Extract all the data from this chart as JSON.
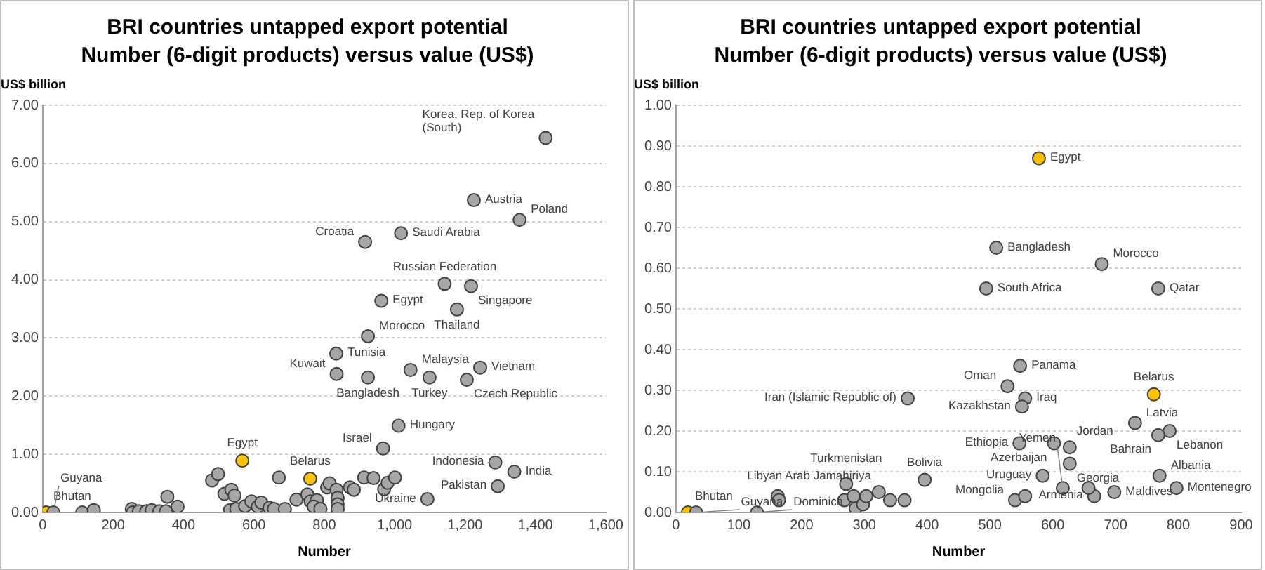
{
  "chart_data": [
    {
      "type": "scatter",
      "title": "BRI countries untapped export potential",
      "subtitle": "Number (6-digit products) versus value (US$)",
      "xlabel": "Number",
      "ylabel": "US$ billion",
      "xlim": [
        0,
        1600
      ],
      "ylim": [
        0,
        7
      ],
      "xticks": [
        0,
        200,
        400,
        600,
        800,
        {
          "value": 1000,
          "label": "1,000"
        },
        {
          "value": 1200,
          "label": "1,200"
        },
        {
          "value": 1400,
          "label": "1,400"
        },
        {
          "value": 1600,
          "label": "1,600"
        }
      ],
      "yticks": [
        {
          "value": 0,
          "label": "0.00"
        },
        {
          "value": 1,
          "label": "1.00"
        },
        {
          "value": 2,
          "label": "2.00"
        },
        {
          "value": 3,
          "label": "3.00"
        },
        {
          "value": 4,
          "label": "4.00"
        },
        {
          "value": 5,
          "label": "5.00"
        },
        {
          "value": 6,
          "label": "6.00"
        },
        {
          "value": 7,
          "label": "7.00"
        }
      ],
      "grid": "y",
      "marker": "circle",
      "legend": false,
      "series": [
        {
          "color": "#a6a6a6",
          "x": [
            1429,
            1225,
            1355,
            1018,
            916,
            1142,
            1217,
            962,
            1177,
            924,
            834,
            835,
            924,
            1045,
            1099,
            1243,
            1205,
            1011,
            967,
            1286,
            1340,
            1293,
            1093,
            30,
            112,
            145,
            253,
            256,
            273,
            294,
            310,
            331,
            350,
            354,
            383,
            481,
            498,
            516,
            536,
            545,
            532,
            550,
            575,
            593,
            611,
            621,
            644,
            671,
            657,
            688,
            721,
            752,
            761,
            779,
            770,
            789,
            808,
            815,
            835,
            838,
            838,
            838,
            873,
            884,
            913,
            940,
            970,
            980,
            1001
          ],
          "values": [
            6.44,
            5.37,
            5.03,
            4.8,
            4.65,
            3.93,
            3.89,
            3.64,
            3.49,
            3.03,
            2.73,
            2.38,
            2.32,
            2.45,
            2.32,
            2.49,
            2.28,
            1.49,
            1.1,
            0.86,
            0.7,
            0.45,
            0.23,
            0.0,
            0.0,
            0.04,
            0.06,
            0.0,
            0.02,
            0.02,
            0.04,
            0.02,
            0.02,
            0.27,
            0.1,
            0.55,
            0.66,
            0.32,
            0.39,
            0.29,
            0.04,
            0.06,
            0.11,
            0.19,
            0.1,
            0.17,
            0.08,
            0.6,
            0.06,
            0.06,
            0.22,
            0.31,
            0.19,
            0.21,
            0.1,
            0.06,
            0.43,
            0.5,
            0.39,
            0.25,
            0.14,
            0.06,
            0.43,
            0.39,
            0.6,
            0.59,
            0.4,
            0.51,
            0.6
          ]
        },
        {
          "color": "#ffc000",
          "x": [
            10,
            567,
            760
          ],
          "values": [
            0.0,
            0.89,
            0.58
          ]
        }
      ],
      "annotations": [
        {
          "text": "Korea, Rep. of Korea (South)",
          "x": 1429,
          "y": 6.44
        },
        {
          "text": "Austria",
          "x": 1225,
          "y": 5.37
        },
        {
          "text": "Poland",
          "x": 1355,
          "y": 5.03
        },
        {
          "text": "Saudi Arabia",
          "x": 1018,
          "y": 4.8
        },
        {
          "text": "Croatia",
          "x": 916,
          "y": 4.65
        },
        {
          "text": "Russian Federation",
          "x": 1142,
          "y": 3.93
        },
        {
          "text": "Singapore",
          "x": 1217,
          "y": 3.89
        },
        {
          "text": "Egypt",
          "x": 962,
          "y": 3.64
        },
        {
          "text": "Thailand",
          "x": 1177,
          "y": 3.49
        },
        {
          "text": "Morocco",
          "x": 924,
          "y": 3.03
        },
        {
          "text": "Tunisia",
          "x": 834,
          "y": 2.73
        },
        {
          "text": "Kuwait",
          "x": 835,
          "y": 2.38
        },
        {
          "text": "Bangladesh",
          "x": 924,
          "y": 2.32
        },
        {
          "text": "Malaysia",
          "x": 1045,
          "y": 2.45
        },
        {
          "text": "Turkey",
          "x": 1099,
          "y": 2.32
        },
        {
          "text": "Vietnam",
          "x": 1243,
          "y": 2.49
        },
        {
          "text": "Czech Republic",
          "x": 1205,
          "y": 2.28
        },
        {
          "text": "Hungary",
          "x": 1011,
          "y": 1.49
        },
        {
          "text": "Israel",
          "x": 967,
          "y": 1.1
        },
        {
          "text": "Indonesia",
          "x": 1286,
          "y": 0.86
        },
        {
          "text": "India",
          "x": 1340,
          "y": 0.7
        },
        {
          "text": "Pakistan",
          "x": 1293,
          "y": 0.45
        },
        {
          "text": "Ukraine",
          "x": 1093,
          "y": 0.23
        },
        {
          "text": "Egypt",
          "x": 567,
          "y": 0.89
        },
        {
          "text": "Belarus",
          "x": 760,
          "y": 0.58
        },
        {
          "text": "Bhutan",
          "x": 10,
          "y": 0.0
        },
        {
          "text": "Guyana",
          "x": 30,
          "y": 0.0
        }
      ]
    },
    {
      "type": "scatter",
      "title": "BRI countries untapped export potential",
      "subtitle": "Number (6-digit products) versus value (US$)",
      "xlabel": "Number",
      "ylabel": "US$ billion",
      "xlim": [
        0,
        900
      ],
      "ylim": [
        0,
        1
      ],
      "xticks": [
        0,
        100,
        200,
        300,
        400,
        500,
        600,
        700,
        800,
        900
      ],
      "yticks": [
        {
          "value": 0,
          "label": "0.00"
        },
        {
          "value": 0.1,
          "label": "0.10"
        },
        {
          "value": 0.2,
          "label": "0.20"
        },
        {
          "value": 0.3,
          "label": "0.30"
        },
        {
          "value": 0.4,
          "label": "0.40"
        },
        {
          "value": 0.5,
          "label": "0.50"
        },
        {
          "value": 0.6,
          "label": "0.60"
        },
        {
          "value": 0.7,
          "label": "0.70"
        },
        {
          "value": 0.8,
          "label": "0.80"
        },
        {
          "value": 0.9,
          "label": "0.90"
        },
        {
          "value": 1,
          "label": "1.00"
        }
      ],
      "grid": "y",
      "marker": "circle",
      "legend": false,
      "series": [
        {
          "color": "#a6a6a6",
          "x": [
            510,
            678,
            494,
            768,
            548,
            528,
            556,
            551,
            369,
            731,
            786,
            768,
            602,
            627,
            547,
            627,
            584,
            770,
            797,
            698,
            666,
            616,
            540,
            556,
            657,
            396,
            271,
            32,
            129,
            162,
            164,
            268,
            283,
            286,
            298,
            303,
            323,
            341,
            364
          ],
          "values": [
            0.65,
            0.61,
            0.55,
            0.55,
            0.36,
            0.31,
            0.28,
            0.26,
            0.28,
            0.22,
            0.2,
            0.19,
            0.17,
            0.16,
            0.17,
            0.12,
            0.09,
            0.09,
            0.06,
            0.05,
            0.04,
            0.06,
            0.03,
            0.04,
            0.06,
            0.08,
            0.07,
            0.0,
            0.0,
            0.04,
            0.03,
            0.03,
            0.04,
            0.01,
            0.02,
            0.04,
            0.05,
            0.03,
            0.03
          ]
        },
        {
          "color": "#ffc000",
          "x": [
            19,
            578,
            761
          ],
          "values": [
            0.0,
            0.87,
            0.29
          ]
        }
      ],
      "annotations": [
        {
          "text": "Egypt",
          "x": 578,
          "y": 0.87
        },
        {
          "text": "Bangladesh",
          "x": 510,
          "y": 0.65
        },
        {
          "text": "Morocco",
          "x": 678,
          "y": 0.61
        },
        {
          "text": "South Africa",
          "x": 494,
          "y": 0.55
        },
        {
          "text": "Qatar",
          "x": 768,
          "y": 0.55
        },
        {
          "text": "Panama",
          "x": 548,
          "y": 0.36
        },
        {
          "text": "Oman",
          "x": 528,
          "y": 0.31
        },
        {
          "text": "Iraq",
          "x": 556,
          "y": 0.28
        },
        {
          "text": "Kazakhstan",
          "x": 551,
          "y": 0.26
        },
        {
          "text": "Iran (Islamic Republic of)",
          "x": 369,
          "y": 0.28
        },
        {
          "text": "Belarus",
          "x": 761,
          "y": 0.29
        },
        {
          "text": "Latvia",
          "x": 731,
          "y": 0.22
        },
        {
          "text": "Lebanon",
          "x": 786,
          "y": 0.2
        },
        {
          "text": "Bahrain",
          "x": 768,
          "y": 0.19
        },
        {
          "text": "Azerbaijan",
          "x": 602,
          "y": 0.17
        },
        {
          "text": "Jordan",
          "x": 627,
          "y": 0.16
        },
        {
          "text": "Ethiopia",
          "x": 547,
          "y": 0.17
        },
        {
          "text": "Georgia",
          "x": 627,
          "y": 0.12
        },
        {
          "text": "Uruguay",
          "x": 584,
          "y": 0.09
        },
        {
          "text": "Albania",
          "x": 770,
          "y": 0.09
        },
        {
          "text": "Montenegro",
          "x": 797,
          "y": 0.06
        },
        {
          "text": "Maldives",
          "x": 698,
          "y": 0.05
        },
        {
          "text": "Armenia",
          "x": 666,
          "y": 0.04
        },
        {
          "text": "Yemen",
          "x": 616,
          "y": 0.06
        },
        {
          "text": "Mongolia",
          "x": 540,
          "y": 0.03
        },
        {
          "text": "Bolivia",
          "x": 396,
          "y": 0.08
        },
        {
          "text": "Libyan Arab Jamahiriya",
          "x": 323,
          "y": 0.05
        },
        {
          "text": "Turkmenistan",
          "x": 271,
          "y": 0.07
        },
        {
          "text": "Bhutan",
          "x": 19,
          "y": 0.0
        },
        {
          "text": "Guyana",
          "x": 32,
          "y": 0.0
        },
        {
          "text": "Dominica",
          "x": 129,
          "y": 0.0
        }
      ]
    }
  ]
}
